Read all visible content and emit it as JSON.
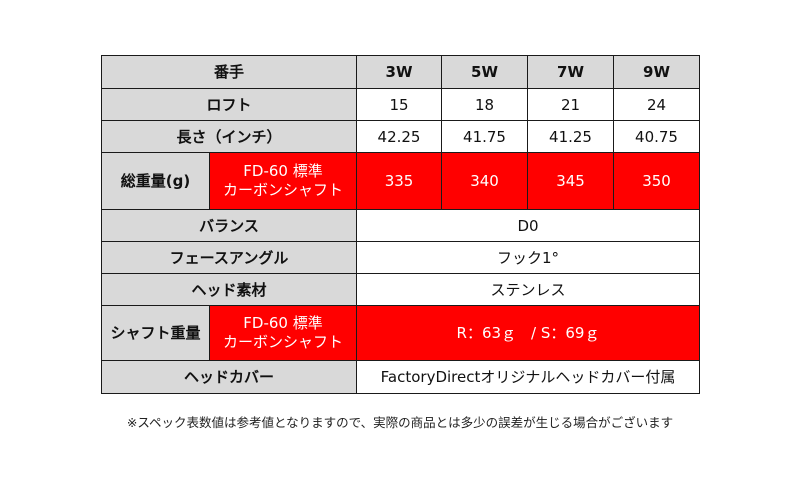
{
  "table": {
    "header": {
      "label": "番手",
      "columns": [
        "3W",
        "5W",
        "7W",
        "9W"
      ]
    },
    "loft": {
      "label": "ロフト",
      "values": [
        "15",
        "18",
        "21",
        "24"
      ]
    },
    "length": {
      "label": "長さ（インチ）",
      "values": [
        "42.25",
        "41.75",
        "41.25",
        "40.75"
      ]
    },
    "total_weight": {
      "label": "総重量(g)",
      "sub_label_line1": "FD-60 標準",
      "sub_label_line2": "カーボンシャフト",
      "values": [
        "335",
        "340",
        "345",
        "350"
      ]
    },
    "balance": {
      "label": "バランス",
      "value": "D0"
    },
    "face_angle": {
      "label": "フェースアングル",
      "value": "フック1°"
    },
    "head_material": {
      "label": "ヘッド素材",
      "value": "ステンレス"
    },
    "shaft_weight": {
      "label": "シャフト重量",
      "sub_label_line1": "FD-60 標準",
      "sub_label_line2": "カーボンシャフト",
      "value": "R：63ｇ　/ S：69ｇ"
    },
    "head_cover": {
      "label": "ヘッドカバー",
      "value": "FactoryDirectオリジナルヘッドカバー付属"
    }
  },
  "footnote": "※スペック表数値は参考値となりますので、実際の商品とは多少の誤差が生じる場合がございます",
  "colors": {
    "label_bg": "#d9d9d9",
    "accent_red": "#ff0000",
    "border": "#1a1a1a"
  }
}
